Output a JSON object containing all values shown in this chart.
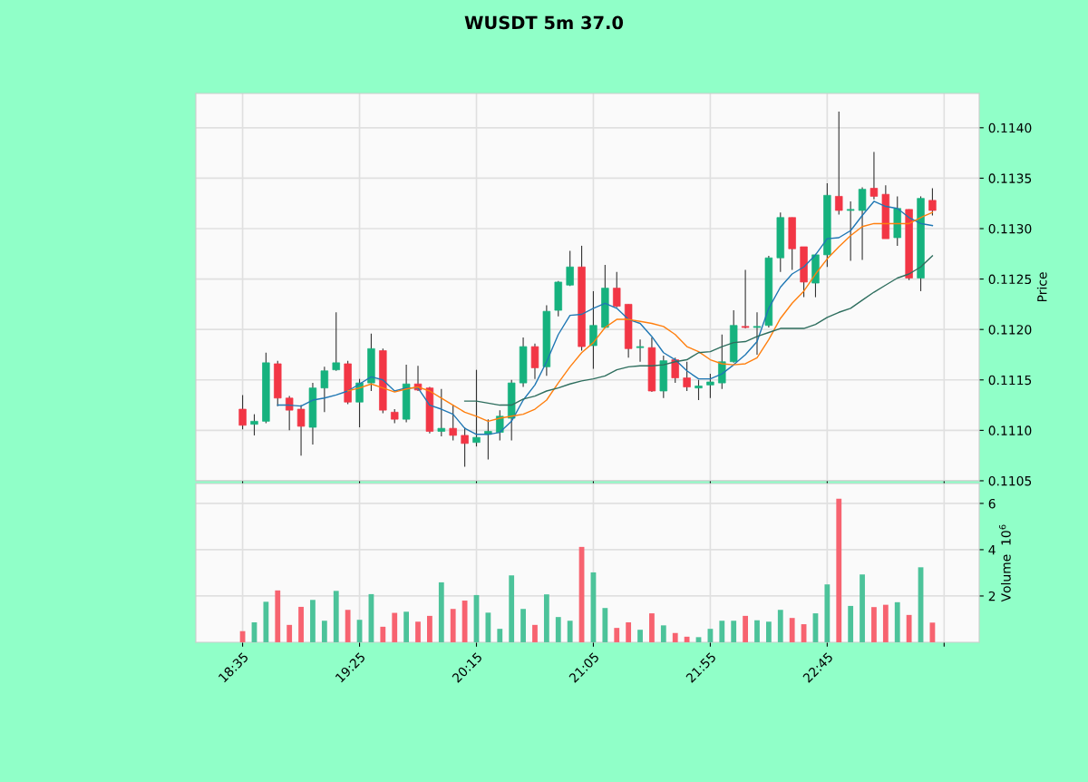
{
  "chart_data": [
    {
      "type": "candlestick",
      "title": "WUSDT 5m 37.0",
      "ylabel": "Price",
      "grid": true,
      "tick_labels": "y",
      "x": [
        18.5833,
        18.6667,
        18.75,
        18.8333,
        18.9167,
        19,
        19.0833,
        19.1667,
        19.25,
        19.3333,
        19.4167,
        19.5,
        19.5833,
        19.6667,
        19.75,
        19.8333,
        19.9167,
        20,
        20.0833,
        20.1667,
        20.25,
        20.3333,
        20.4167,
        20.5,
        20.5833,
        20.6667,
        20.75,
        20.8333,
        20.9167,
        21,
        21.0833,
        21.1667,
        21.25,
        21.3333,
        21.4167,
        21.5,
        21.5833,
        21.6667,
        21.75,
        21.8333,
        21.9167,
        22,
        22.0833,
        22.1667,
        22.25,
        22.3333,
        22.4167,
        22.5,
        22.5833,
        22.6667,
        22.75,
        22.8333,
        22.9167,
        23,
        23.0833,
        23.1667,
        23.25,
        23.3333,
        23.4167,
        23.5
      ],
      "ohlc": [
        [
          0.11121,
          0.11135,
          0.11101,
          0.11105
        ],
        [
          0.11106,
          0.11116,
          0.11095,
          0.11109
        ],
        [
          0.11109,
          0.11177,
          0.11107,
          0.11167
        ],
        [
          0.11166,
          0.11169,
          0.11124,
          0.11132
        ],
        [
          0.11132,
          0.11134,
          0.111,
          0.1112
        ],
        [
          0.11121,
          0.11125,
          0.11075,
          0.11104
        ],
        [
          0.11103,
          0.11147,
          0.11086,
          0.11142
        ],
        [
          0.11142,
          0.11163,
          0.11118,
          0.11159
        ],
        [
          0.1116,
          0.11217,
          0.11159,
          0.11167
        ],
        [
          0.11166,
          0.11169,
          0.11126,
          0.11128
        ],
        [
          0.11128,
          0.11151,
          0.11103,
          0.11147
        ],
        [
          0.11147,
          0.11196,
          0.11139,
          0.11181
        ],
        [
          0.11179,
          0.11181,
          0.11117,
          0.1112
        ],
        [
          0.11118,
          0.11121,
          0.11107,
          0.11111
        ],
        [
          0.11111,
          0.11165,
          0.11108,
          0.11146
        ],
        [
          0.11146,
          0.11164,
          0.11139,
          0.1114
        ],
        [
          0.11142,
          0.11143,
          0.11097,
          0.11099
        ],
        [
          0.11099,
          0.11141,
          0.11094,
          0.11102
        ],
        [
          0.11102,
          0.11125,
          0.1109,
          0.11095
        ],
        [
          0.11095,
          0.11103,
          0.11064,
          0.11087
        ],
        [
          0.11088,
          0.1116,
          0.11084,
          0.11093
        ],
        [
          0.11096,
          0.11111,
          0.11071,
          0.11099
        ],
        [
          0.11098,
          0.1112,
          0.1109,
          0.11114
        ],
        [
          0.11112,
          0.1115,
          0.1109,
          0.11147
        ],
        [
          0.11147,
          0.11192,
          0.11143,
          0.11183
        ],
        [
          0.11183,
          0.11186,
          0.11151,
          0.11162
        ],
        [
          0.11163,
          0.11224,
          0.11154,
          0.11218
        ],
        [
          0.11219,
          0.11248,
          0.11213,
          0.11247
        ],
        [
          0.11244,
          0.11278,
          0.11243,
          0.11262
        ],
        [
          0.11262,
          0.11283,
          0.11179,
          0.11183
        ],
        [
          0.11184,
          0.11238,
          0.11161,
          0.11204
        ],
        [
          0.11202,
          0.11264,
          0.11201,
          0.11241
        ],
        [
          0.11241,
          0.11257,
          0.11222,
          0.11223
        ],
        [
          0.11225,
          0.11225,
          0.11172,
          0.11181
        ],
        [
          0.11182,
          0.1119,
          0.11168,
          0.11183
        ],
        [
          0.11182,
          0.11192,
          0.11138,
          0.11139
        ],
        [
          0.11139,
          0.11174,
          0.11132,
          0.11169
        ],
        [
          0.1117,
          0.11172,
          0.11147,
          0.11152
        ],
        [
          0.11152,
          0.11168,
          0.11139,
          0.11143
        ],
        [
          0.11142,
          0.1115,
          0.1113,
          0.11144
        ],
        [
          0.11145,
          0.11156,
          0.11132,
          0.11148
        ],
        [
          0.11147,
          0.11195,
          0.11141,
          0.11168
        ],
        [
          0.11168,
          0.11219,
          0.11167,
          0.11204
        ],
        [
          0.11203,
          0.11259,
          0.11201,
          0.11202
        ],
        [
          0.11202,
          0.11217,
          0.11175,
          0.11203
        ],
        [
          0.11204,
          0.11273,
          0.11202,
          0.11271
        ],
        [
          0.11271,
          0.11316,
          0.11257,
          0.11311
        ],
        [
          0.11311,
          0.11311,
          0.11259,
          0.1128
        ],
        [
          0.11282,
          0.11282,
          0.11232,
          0.11247
        ],
        [
          0.11246,
          0.11275,
          0.11232,
          0.11274
        ],
        [
          0.11274,
          0.11345,
          0.11262,
          0.11333
        ],
        [
          0.11332,
          0.11416,
          0.11314,
          0.11318
        ],
        [
          0.11318,
          0.11327,
          0.11268,
          0.11319
        ],
        [
          0.11318,
          0.11341,
          0.11269,
          0.11339
        ],
        [
          0.1134,
          0.11376,
          0.11329,
          0.11332
        ],
        [
          0.11334,
          0.11343,
          0.1129,
          0.1129
        ],
        [
          0.11291,
          0.11332,
          0.11283,
          0.1132
        ],
        [
          0.11319,
          0.11319,
          0.11249,
          0.11251
        ],
        [
          0.11251,
          0.11332,
          0.11238,
          0.1133
        ],
        [
          0.11328,
          0.1134,
          0.11313,
          0.11318
        ]
      ],
      "colors": [
        "#f23645",
        "#16b27e",
        "#16b27e",
        "#f23645",
        "#f23645",
        "#f23645",
        "#16b27e",
        "#16b27e",
        "#16b27e",
        "#f23645",
        "#16b27e",
        "#16b27e",
        "#f23645",
        "#f23645",
        "#16b27e",
        "#f23645",
        "#f23645",
        "#16b27e",
        "#f23645",
        "#f23645",
        "#16b27e",
        "#16b27e",
        "#16b27e",
        "#16b27e",
        "#16b27e",
        "#f23645",
        "#16b27e",
        "#16b27e",
        "#16b27e",
        "#f23645",
        "#16b27e",
        "#16b27e",
        "#f23645",
        "#f23645",
        "#16b27e",
        "#f23645",
        "#16b27e",
        "#f23645",
        "#f23645",
        "#16b27e",
        "#16b27e",
        "#16b27e",
        "#16b27e",
        "#f23645",
        "#16b27e",
        "#16b27e",
        "#16b27e",
        "#f23645",
        "#f23645",
        "#16b27e",
        "#16b27e",
        "#f23645",
        "#16b27e",
        "#16b27e",
        "#f23645",
        "#f23645",
        "#16b27e",
        "#f23645",
        "#16b27e",
        "#f23645"
      ],
      "series": [
        {
          "type": "line",
          "color": "#1f77b4",
          "values": [
            null,
            null,
            null,
            0.11125,
            0.11125,
            0.11124,
            0.1113,
            0.11132,
            0.11135,
            0.11139,
            0.11146,
            0.11153,
            0.1115,
            0.11139,
            0.11142,
            0.11142,
            0.11125,
            0.11121,
            0.11116,
            0.11102,
            0.11096,
            0.11096,
            0.11098,
            0.11109,
            0.1113,
            0.11145,
            0.11168,
            0.11195,
            0.11214,
            0.11215,
            0.11221,
            0.11226,
            0.11221,
            0.1121,
            0.11206,
            0.11193,
            0.11177,
            0.1117,
            0.11159,
            0.11151,
            0.11151,
            0.11156,
            0.11165,
            0.11175,
            0.11188,
            0.11221,
            0.11242,
            0.11255,
            0.11262,
            0.11274,
            0.1129,
            0.11291,
            0.11298,
            0.11313,
            0.11327,
            0.11322,
            0.1132,
            0.11311,
            0.11305,
            0.11303
          ]
        },
        {
          "type": "line",
          "color": "#ff7f0e",
          "values": [
            null,
            null,
            null,
            null,
            null,
            null,
            null,
            null,
            null,
            0.11139,
            0.11142,
            0.11146,
            0.11142,
            0.11138,
            0.11141,
            0.11143,
            0.11139,
            0.11132,
            0.11125,
            0.11118,
            0.11114,
            0.11109,
            0.11112,
            0.11114,
            0.11116,
            0.11121,
            0.1113,
            0.11147,
            0.11163,
            0.11177,
            0.11187,
            0.11202,
            0.1121,
            0.1121,
            0.11208,
            0.11206,
            0.11203,
            0.11195,
            0.11183,
            0.11178,
            0.1117,
            0.11166,
            0.11165,
            0.11166,
            0.11172,
            0.1119,
            0.11211,
            0.11226,
            0.11238,
            0.11255,
            0.1127,
            0.11282,
            0.11293,
            0.11302,
            0.11305,
            0.11305,
            0.11305,
            0.11305,
            0.11311,
            0.11316
          ]
        },
        {
          "type": "line",
          "color": "#2e6e5e",
          "values": [
            null,
            null,
            null,
            null,
            null,
            null,
            null,
            null,
            null,
            null,
            null,
            null,
            null,
            null,
            null,
            null,
            null,
            null,
            null,
            0.11129,
            0.11129,
            0.11127,
            0.11125,
            0.11125,
            0.11131,
            0.11134,
            0.11139,
            0.11142,
            0.11146,
            0.11149,
            0.11151,
            0.11154,
            0.1116,
            0.11163,
            0.11164,
            0.11164,
            0.11165,
            0.11168,
            0.1117,
            0.11177,
            0.11178,
            0.11183,
            0.11187,
            0.11188,
            0.11193,
            0.11197,
            0.11201,
            0.11201,
            0.11201,
            0.11205,
            0.11212,
            0.11217,
            0.11221,
            0.11229,
            0.11237,
            0.11244,
            0.11251,
            0.11255,
            0.11262,
            0.11273
          ]
        }
      ],
      "xlim": [
        18.25,
        23.8333
      ],
      "xticks": [
        18.5833,
        19.4167,
        20.25,
        21.0833,
        21.9167,
        22.75,
        23.5833
      ],
      "ylim": [
        0.1105,
        0.11434
      ],
      "yticks": [
        {
          "value": 0.1105,
          "label": "0.1105"
        },
        {
          "value": 0.111,
          "label": "0.1110"
        },
        {
          "value": 0.1115,
          "label": "0.1115"
        },
        {
          "value": 0.112,
          "label": "0.1120"
        },
        {
          "value": 0.1125,
          "label": "0.1125"
        },
        {
          "value": 0.113,
          "label": "0.1130"
        },
        {
          "value": 0.1135,
          "label": "0.1135"
        },
        {
          "value": 0.114,
          "label": "0.1140"
        }
      ]
    },
    {
      "type": "bar",
      "ylabel": "Volume  10$^{6}$",
      "grid": true,
      "x": [
        18.5833,
        18.6667,
        18.75,
        18.8333,
        18.9167,
        19,
        19.0833,
        19.1667,
        19.25,
        19.3333,
        19.4167,
        19.5,
        19.5833,
        19.6667,
        19.75,
        19.8333,
        19.9167,
        20,
        20.0833,
        20.1667,
        20.25,
        20.3333,
        20.4167,
        20.5,
        20.5833,
        20.6667,
        20.75,
        20.8333,
        20.9167,
        21,
        21.0833,
        21.1667,
        21.25,
        21.3333,
        21.4167,
        21.5,
        21.5833,
        21.6667,
        21.75,
        21.8333,
        21.9167,
        22,
        22.0833,
        22.1667,
        22.25,
        22.3333,
        22.4167,
        22.5,
        22.5833,
        22.6667,
        22.75,
        22.8333,
        22.9167,
        23,
        23.0833,
        23.1667,
        23.25,
        23.3333,
        23.4167,
        23.5
      ],
      "values": [
        0.48,
        0.86,
        1.75,
        2.24,
        0.75,
        1.53,
        1.83,
        0.93,
        2.22,
        1.4,
        0.97,
        2.08,
        0.67,
        1.27,
        1.32,
        0.89,
        1.14,
        2.59,
        1.44,
        1.8,
        2.04,
        1.28,
        0.58,
        2.89,
        1.44,
        0.75,
        2.07,
        1.09,
        0.93,
        4.12,
        3.02,
        1.48,
        0.62,
        0.86,
        0.54,
        1.25,
        0.73,
        0.4,
        0.24,
        0.22,
        0.58,
        0.93,
        0.93,
        1.14,
        0.95,
        0.89,
        1.4,
        1.05,
        0.78,
        1.25,
        2.5,
        6.2,
        1.57,
        2.93,
        1.52,
        1.62,
        1.73,
        1.18,
        3.24,
        0.85
      ],
      "colors": [
        "#f76370",
        "#4cc39a",
        "#4cc39a",
        "#f76370",
        "#f76370",
        "#f76370",
        "#4cc39a",
        "#4cc39a",
        "#4cc39a",
        "#f76370",
        "#4cc39a",
        "#4cc39a",
        "#f76370",
        "#f76370",
        "#4cc39a",
        "#f76370",
        "#f76370",
        "#4cc39a",
        "#f76370",
        "#f76370",
        "#4cc39a",
        "#4cc39a",
        "#4cc39a",
        "#4cc39a",
        "#4cc39a",
        "#f76370",
        "#4cc39a",
        "#4cc39a",
        "#4cc39a",
        "#f76370",
        "#4cc39a",
        "#4cc39a",
        "#f76370",
        "#f76370",
        "#4cc39a",
        "#f76370",
        "#4cc39a",
        "#f76370",
        "#f76370",
        "#4cc39a",
        "#4cc39a",
        "#4cc39a",
        "#4cc39a",
        "#f76370",
        "#4cc39a",
        "#4cc39a",
        "#4cc39a",
        "#f76370",
        "#f76370",
        "#4cc39a",
        "#4cc39a",
        "#f76370",
        "#4cc39a",
        "#4cc39a",
        "#f76370",
        "#f76370",
        "#4cc39a",
        "#f76370",
        "#4cc39a",
        "#f76370"
      ],
      "xlim": [
        18.25,
        23.8333
      ],
      "xticks": [
        {
          "value": 18.5833,
          "label": "18:35"
        },
        {
          "value": 19.4167,
          "label": "19:25"
        },
        {
          "value": 20.25,
          "label": "20:15"
        },
        {
          "value": 21.0833,
          "label": "21:05"
        },
        {
          "value": 21.9167,
          "label": "21:55"
        },
        {
          "value": 22.75,
          "label": "22:45"
        },
        {
          "value": 23.5833,
          "label": null
        }
      ],
      "ylim": [
        0,
        6.86
      ],
      "yticks": [
        2,
        4,
        6
      ]
    }
  ]
}
